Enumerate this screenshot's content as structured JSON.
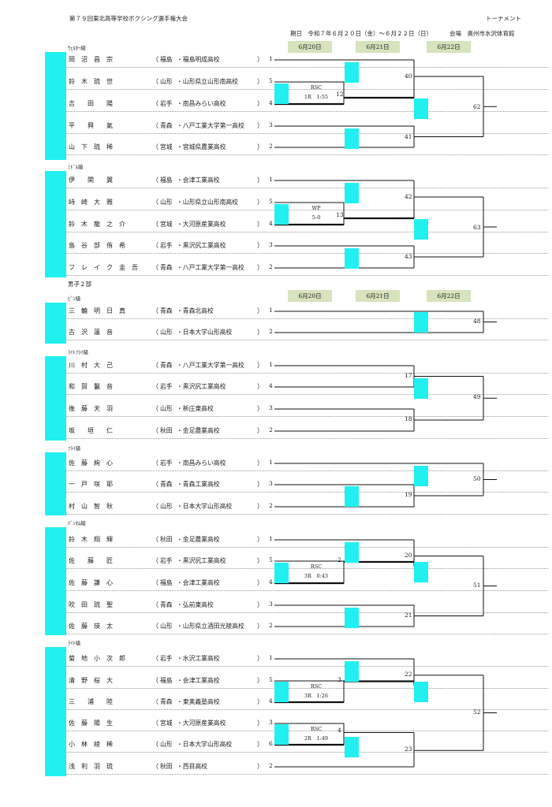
{
  "header": {
    "title": "第７９回東北高等学校ボクシング選手権大会",
    "kind": "トーナメント",
    "period": "期日　令和７年６月２０日（金）～６月２２日（日）",
    "venue": "会場　奥州市水沢体育館"
  },
  "dates": [
    "6月20日",
    "6月21日",
    "6月22日"
  ],
  "section_label": "男子２部",
  "weights": [
    {
      "label": "ｳｪﾙﾀｰ級",
      "entries": [
        {
          "name": "岡　沼　昌　宗",
          "pref": "福島",
          "school": "福島明成高校",
          "seed": "1"
        },
        {
          "name": "鈴　木　琉　世",
          "pref": "山形",
          "school": "山形県立山形南高校",
          "seed": "5"
        },
        {
          "name": "吉　　田　　陽",
          "pref": "岩手",
          "school": "南昌みらい高校",
          "seed": "4"
        },
        {
          "name": "平　　興　　氣",
          "pref": "青森",
          "school": "八戸工業大学第一高校",
          "seed": "3"
        },
        {
          "name": "山　下　琉　稀",
          "pref": "宮城",
          "school": "宮城県農業高校",
          "seed": "2"
        }
      ],
      "bouts": [
        "12",
        "40",
        "41",
        "62"
      ],
      "result": [
        "RSC",
        "1R　1:55"
      ]
    },
    {
      "label": "ﾐﾄﾞﾙ級",
      "entries": [
        {
          "name": "伊　　関　　翼",
          "pref": "福島",
          "school": "会津工業高校",
          "seed": "1"
        },
        {
          "name": "峙　崎　大　雅",
          "pref": "山形",
          "school": "山形県立山形南高校",
          "seed": "5"
        },
        {
          "name": "鈴　木　龍　之　介",
          "pref": "宮城",
          "school": "大河原産業高校",
          "seed": "4"
        },
        {
          "name": "島　谷　部　侑　希",
          "pref": "岩手",
          "school": "黒沢尻工業高校",
          "seed": "3"
        },
        {
          "name": "フ　レ　イ　ク　圭　吾",
          "pref": "青森",
          "school": "八戸工業大学第一高校",
          "seed": "2"
        }
      ],
      "bouts": [
        "13",
        "42",
        "43",
        "63"
      ],
      "result": [
        "WP",
        "5-0"
      ]
    },
    {
      "label": "ﾋﾟﾝ級",
      "entries": [
        {
          "name": "三　輪　明　日　真",
          "pref": "青森",
          "school": "青森北高校",
          "seed": "1"
        },
        {
          "name": "古　沢　蓮　音",
          "pref": "山形",
          "school": "日本大学山形高校",
          "seed": "2"
        }
      ],
      "bouts": [
        "48"
      ]
    },
    {
      "label": "ﾗｲﾄﾌﾗｲ級",
      "entries": [
        {
          "name": "川　村　大　己",
          "pref": "青森",
          "school": "八戸工業大学第一高校",
          "seed": "1"
        },
        {
          "name": "和　賀　鬣　音",
          "pref": "岩手",
          "school": "黒沢尻工業高校",
          "seed": "4"
        },
        {
          "name": "後　藤　天　羽",
          "pref": "山形",
          "school": "新庄東高校",
          "seed": "3"
        },
        {
          "name": "坂　　垣　　仁",
          "pref": "秋田",
          "school": "金足農業高校",
          "seed": "2"
        }
      ],
      "bouts": [
        "17",
        "18",
        "49"
      ]
    },
    {
      "label": "ﾌﾗｲ級",
      "entries": [
        {
          "name": "佐　藤　絢　心",
          "pref": "岩手",
          "school": "南昌みらい高校",
          "seed": "1"
        },
        {
          "name": "一　戸　咲　耶",
          "pref": "青森",
          "school": "青森工業高校",
          "seed": "3"
        },
        {
          "name": "村　山　智　秋",
          "pref": "山形",
          "school": "日本大学山形高校",
          "seed": "2"
        }
      ],
      "bouts": [
        "19",
        "50"
      ]
    },
    {
      "label": "ﾊﾞﾝﾀﾑ級",
      "entries": [
        {
          "name": "鈴　木　翔　輝",
          "pref": "秋田",
          "school": "金足農業高校",
          "seed": "1"
        },
        {
          "name": "佐　　藤　　匠",
          "pref": "岩手",
          "school": "黒沢尻工業高校",
          "seed": "5"
        },
        {
          "name": "佐　藤　謙　心",
          "pref": "福島",
          "school": "会津工業高校",
          "seed": "4"
        },
        {
          "name": "吹　田　琉　聖",
          "pref": "青森",
          "school": "弘前東高校",
          "seed": "3"
        },
        {
          "name": "佐　藤　瑛　太",
          "pref": "山形",
          "school": "山形県立酒田光陵高校",
          "seed": "2"
        }
      ],
      "bouts": [
        "2",
        "20",
        "21",
        "51"
      ],
      "result": [
        "RSC",
        "3R　0:43"
      ]
    },
    {
      "label": "ﾗｲﾄ級",
      "entries": [
        {
          "name": "菊　地　小　次　郎",
          "pref": "岩手",
          "school": "水沢工業高校",
          "seed": "1"
        },
        {
          "name": "清　野　桜　大",
          "pref": "福島",
          "school": "会津工業高校",
          "seed": "5"
        },
        {
          "name": "三　　浦　　陸",
          "pref": "青森",
          "school": "東奥義塾高校",
          "seed": "4"
        },
        {
          "name": "佐　藤　陽　生",
          "pref": "宮城",
          "school": "大河原産業高校",
          "seed": "3"
        },
        {
          "name": "小　林　綾　稀",
          "pref": "山形",
          "school": "日本大学山形高校",
          "seed": "6"
        },
        {
          "name": "浅　利　羽　琉",
          "pref": "秋田",
          "school": "西目高校",
          "seed": "2"
        }
      ],
      "bouts": [
        "3",
        "4",
        "22",
        "23",
        "52"
      ],
      "result": [
        "RSC",
        "3R　1:26"
      ],
      "result2": [
        "RSC",
        "2R　1:49"
      ]
    }
  ]
}
